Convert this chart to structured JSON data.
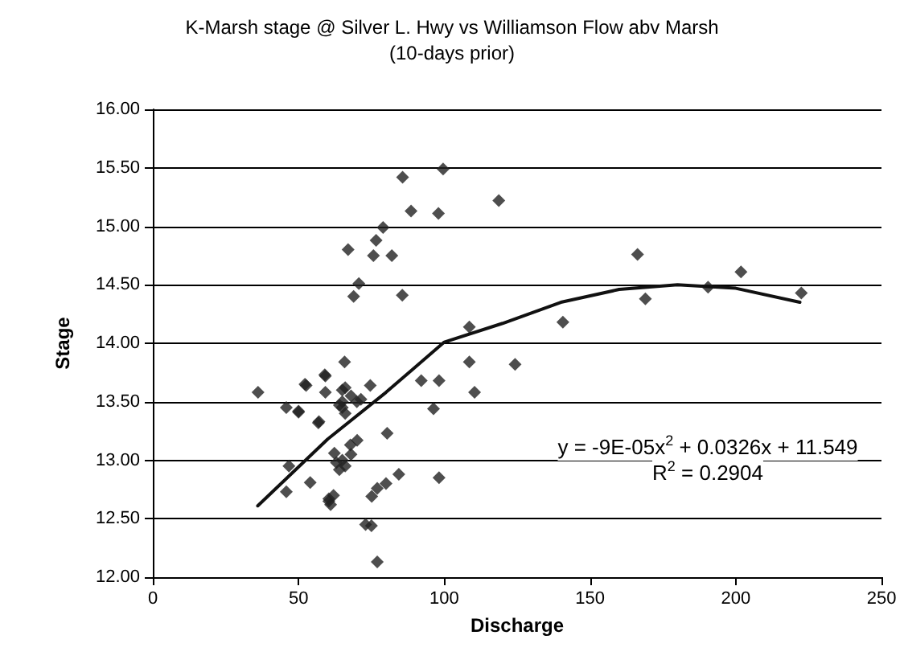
{
  "chart_data": {
    "type": "scatter",
    "title": "K-Marsh stage @ Silver L. Hwy vs Williamson Flow abv Marsh",
    "subtitle": "(10-days prior)",
    "xlabel": "Discharge",
    "ylabel": "Stage",
    "xlim": [
      0,
      250
    ],
    "xticks": [
      0,
      50,
      100,
      150,
      200,
      250
    ],
    "ylim": [
      12,
      16
    ],
    "yticks": [
      {
        "value": 12,
        "label": "12.00"
      },
      {
        "value": 12.5,
        "label": "12.50"
      },
      {
        "value": 13,
        "label": "13.00"
      },
      {
        "value": 13.5,
        "label": "13.50"
      },
      {
        "value": 14,
        "label": "14.00"
      },
      {
        "value": 14.5,
        "label": "14.50"
      },
      {
        "value": 15,
        "label": "15.00"
      },
      {
        "value": 15.5,
        "label": "15.50"
      },
      {
        "value": 16,
        "label": "16.00"
      }
    ],
    "grid": "y",
    "marker": "diamond",
    "series": [
      {
        "color": "#222222",
        "x": [
          85.7,
          99.6,
          118.7,
          88.6,
          98,
          79,
          67,
          76.6,
          75.7,
          82,
          70.7,
          68.9,
          85.6,
          108.6,
          108.6,
          124.3,
          65.8,
          92.1,
          98.2,
          110.4,
          96.3,
          80.4,
          98.2,
          84.4,
          59.2,
          59.2,
          52.6,
          50,
          74.6,
          57,
          65,
          65,
          65,
          71.4,
          64,
          70.1,
          67.8,
          62.3,
          54,
          60.4,
          77,
          80,
          75.1,
          46.7,
          36.1,
          52.2,
          45.8,
          50,
          56.8,
          59,
          45.8,
          60.4,
          166.3,
          201.8,
          190.5,
          169,
          222.5,
          140.7,
          77,
          73,
          75,
          61,
          62,
          63,
          65,
          64,
          66,
          68,
          70,
          68,
          66,
          66
        ],
        "values": [
          15.42,
          15.49,
          15.22,
          15.13,
          15.11,
          14.99,
          14.8,
          14.88,
          14.75,
          14.75,
          14.51,
          14.4,
          14.41,
          14.14,
          13.84,
          13.82,
          13.84,
          13.68,
          13.68,
          13.58,
          13.44,
          13.23,
          12.85,
          12.88,
          13.72,
          13.58,
          13.64,
          13.41,
          13.64,
          13.33,
          13.6,
          13.5,
          13.45,
          13.52,
          13.47,
          13.17,
          13.13,
          13.06,
          12.81,
          12.67,
          12.76,
          12.8,
          12.69,
          12.95,
          13.58,
          13.65,
          13.45,
          13.42,
          13.32,
          13.73,
          12.73,
          12.65,
          14.76,
          14.61,
          14.48,
          14.38,
          14.43,
          14.18,
          12.13,
          12.45,
          12.44,
          12.62,
          12.7,
          12.98,
          13,
          12.92,
          12.95,
          13.05,
          13.5,
          13.55,
          13.62,
          13.4
        ]
      },
      {
        "type": "line",
        "color": "#111111",
        "marker": "none",
        "line_style": "solid",
        "x": [
          36,
          60,
          80,
          100,
          120,
          140,
          160,
          180,
          200,
          222
        ],
        "values": [
          12.61,
          13.18,
          13.58,
          14.01,
          14.17,
          14.35,
          14.46,
          14.5,
          14.47,
          14.35
        ]
      }
    ],
    "annotations": [
      "y = -9E-05x$^{2}$ + 0.0326x + 11.549",
      "R$^{2}$ = 0.2904"
    ]
  }
}
